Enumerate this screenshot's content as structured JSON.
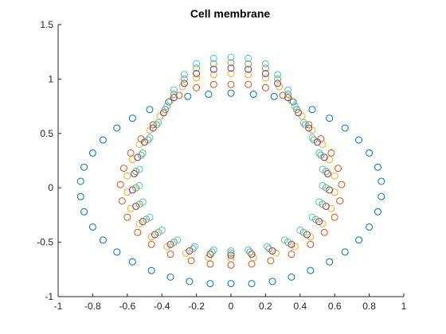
{
  "chart_data": {
    "type": "scatter",
    "title": "Cell membrane",
    "xlabel": "",
    "ylabel": "",
    "xlim": [
      -1,
      1
    ],
    "ylim": [
      -1,
      1.5
    ],
    "xticks": [
      -1,
      -0.8,
      -0.6,
      -0.4,
      -0.2,
      0,
      0.2,
      0.4,
      0.6,
      0.8,
      1
    ],
    "xtick_labels": [
      "-1",
      "-0.8",
      "-0.6",
      "-0.4",
      "-0.2",
      "0",
      "0.2",
      "0.4",
      "0.6",
      "0.8",
      "1"
    ],
    "yticks": [
      -1,
      -0.5,
      0,
      0.5,
      1,
      1.5
    ],
    "ytick_labels": [
      "-1",
      "-0.5",
      "0",
      "0.5",
      "1",
      "1.5"
    ],
    "grid": false,
    "marker": "open-circle",
    "series": [
      {
        "color": "#0072BD",
        "points": [
          [
            0,
            0.87
          ],
          [
            0.13,
            0.86
          ],
          [
            0.25,
            0.84
          ],
          [
            0.36,
            0.79
          ],
          [
            0.47,
            0.72
          ],
          [
            0.57,
            0.64
          ],
          [
            0.66,
            0.55
          ],
          [
            0.74,
            0.44
          ],
          [
            0.8,
            0.32
          ],
          [
            0.85,
            0.19
          ],
          [
            0.87,
            0.06
          ],
          [
            0.87,
            -0.08
          ],
          [
            0.85,
            -0.22
          ],
          [
            0.8,
            -0.36
          ],
          [
            0.74,
            -0.48
          ],
          [
            0.66,
            -0.59
          ],
          [
            0.57,
            -0.68
          ],
          [
            0.46,
            -0.76
          ],
          [
            0.35,
            -0.82
          ],
          [
            0.24,
            -0.86
          ],
          [
            0.12,
            -0.88
          ],
          [
            0,
            -0.88
          ],
          [
            -0.12,
            -0.88
          ],
          [
            -0.24,
            -0.86
          ],
          [
            -0.35,
            -0.82
          ],
          [
            -0.46,
            -0.76
          ],
          [
            -0.57,
            -0.68
          ],
          [
            -0.66,
            -0.59
          ],
          [
            -0.74,
            -0.48
          ],
          [
            -0.8,
            -0.36
          ],
          [
            -0.85,
            -0.22
          ],
          [
            -0.87,
            -0.08
          ],
          [
            -0.87,
            0.06
          ],
          [
            -0.85,
            0.19
          ],
          [
            -0.8,
            0.32
          ],
          [
            -0.74,
            0.44
          ],
          [
            -0.66,
            0.55
          ],
          [
            -0.57,
            0.64
          ],
          [
            -0.47,
            0.72
          ],
          [
            -0.36,
            0.79
          ],
          [
            -0.25,
            0.84
          ],
          [
            -0.13,
            0.86
          ]
        ]
      },
      {
        "color": "#D95319",
        "points": [
          [
            0,
            0.95
          ],
          [
            0.1,
            0.95
          ],
          [
            0.2,
            0.92
          ],
          [
            0.3,
            0.85
          ],
          [
            0.38,
            0.72
          ],
          [
            0.45,
            0.58
          ],
          [
            0.52,
            0.45
          ],
          [
            0.58,
            0.32
          ],
          [
            0.62,
            0.18
          ],
          [
            0.64,
            0.03
          ],
          [
            0.63,
            -0.12
          ],
          [
            0.6,
            -0.27
          ],
          [
            0.54,
            -0.41
          ],
          [
            0.46,
            -0.52
          ],
          [
            0.35,
            -0.61
          ],
          [
            0.23,
            -0.67
          ],
          [
            0.12,
            -0.7
          ],
          [
            0,
            -0.71
          ],
          [
            -0.12,
            -0.7
          ],
          [
            -0.23,
            -0.67
          ],
          [
            -0.35,
            -0.61
          ],
          [
            -0.46,
            -0.52
          ],
          [
            -0.54,
            -0.41
          ],
          [
            -0.6,
            -0.27
          ],
          [
            -0.63,
            -0.12
          ],
          [
            -0.64,
            0.03
          ],
          [
            -0.62,
            0.18
          ],
          [
            -0.58,
            0.32
          ],
          [
            -0.52,
            0.45
          ],
          [
            -0.45,
            0.58
          ],
          [
            -0.38,
            0.72
          ],
          [
            -0.3,
            0.85
          ],
          [
            -0.2,
            0.92
          ],
          [
            -0.1,
            0.95
          ]
        ]
      },
      {
        "color": "#EDB120",
        "points": [
          [
            0,
            1.05
          ],
          [
            0.1,
            1.04
          ],
          [
            0.2,
            1.01
          ],
          [
            0.28,
            0.93
          ],
          [
            0.35,
            0.8
          ],
          [
            0.41,
            0.66
          ],
          [
            0.47,
            0.53
          ],
          [
            0.53,
            0.4
          ],
          [
            0.57,
            0.26
          ],
          [
            0.6,
            0.11
          ],
          [
            0.6,
            -0.04
          ],
          [
            0.58,
            -0.19
          ],
          [
            0.53,
            -0.33
          ],
          [
            0.46,
            -0.45
          ],
          [
            0.37,
            -0.54
          ],
          [
            0.26,
            -0.6
          ],
          [
            0.13,
            -0.64
          ],
          [
            0,
            -0.65
          ],
          [
            -0.13,
            -0.64
          ],
          [
            -0.26,
            -0.6
          ],
          [
            -0.37,
            -0.54
          ],
          [
            -0.46,
            -0.45
          ],
          [
            -0.53,
            -0.33
          ],
          [
            -0.58,
            -0.19
          ],
          [
            -0.6,
            -0.04
          ],
          [
            -0.6,
            0.11
          ],
          [
            -0.57,
            0.26
          ],
          [
            -0.53,
            0.4
          ],
          [
            -0.47,
            0.53
          ],
          [
            -0.41,
            0.66
          ],
          [
            -0.35,
            0.8
          ],
          [
            -0.28,
            0.93
          ],
          [
            -0.2,
            1.01
          ],
          [
            -0.1,
            1.04
          ]
        ]
      },
      {
        "color": "#7E2F8E",
        "points": [
          [
            0,
            1.1
          ],
          [
            0.1,
            1.09
          ],
          [
            0.2,
            1.05
          ],
          [
            0.27,
            0.96
          ],
          [
            0.33,
            0.83
          ],
          [
            0.39,
            0.69
          ],
          [
            0.45,
            0.55
          ],
          [
            0.5,
            0.42
          ],
          [
            0.54,
            0.28
          ],
          [
            0.56,
            0.13
          ],
          [
            0.57,
            -0.02
          ],
          [
            0.55,
            -0.17
          ],
          [
            0.51,
            -0.31
          ],
          [
            0.44,
            -0.43
          ],
          [
            0.35,
            -0.52
          ],
          [
            0.24,
            -0.58
          ],
          [
            0.12,
            -0.61
          ],
          [
            0,
            -0.62
          ],
          [
            -0.12,
            -0.61
          ],
          [
            -0.24,
            -0.58
          ],
          [
            -0.35,
            -0.52
          ],
          [
            -0.44,
            -0.43
          ],
          [
            -0.51,
            -0.31
          ],
          [
            -0.55,
            -0.17
          ],
          [
            -0.57,
            -0.02
          ],
          [
            -0.56,
            0.13
          ],
          [
            -0.54,
            0.28
          ],
          [
            -0.5,
            0.42
          ],
          [
            -0.45,
            0.55
          ],
          [
            -0.39,
            0.69
          ],
          [
            -0.33,
            0.83
          ],
          [
            -0.27,
            0.96
          ],
          [
            -0.2,
            1.05
          ],
          [
            -0.1,
            1.09
          ]
        ]
      },
      {
        "color": "#77AC30",
        "points": [
          [
            0,
            1.15
          ],
          [
            0.1,
            1.14
          ],
          [
            0.2,
            1.1
          ],
          [
            0.27,
            1.0
          ],
          [
            0.33,
            0.86
          ],
          [
            0.38,
            0.72
          ],
          [
            0.43,
            0.58
          ],
          [
            0.48,
            0.44
          ],
          [
            0.52,
            0.3
          ],
          [
            0.55,
            0.15
          ],
          [
            0.55,
            0.0
          ],
          [
            0.53,
            -0.15
          ],
          [
            0.49,
            -0.29
          ],
          [
            0.42,
            -0.41
          ],
          [
            0.33,
            -0.5
          ],
          [
            0.22,
            -0.56
          ],
          [
            0.11,
            -0.59
          ],
          [
            0,
            -0.6
          ],
          [
            -0.11,
            -0.59
          ],
          [
            -0.22,
            -0.56
          ],
          [
            -0.33,
            -0.5
          ],
          [
            -0.42,
            -0.41
          ],
          [
            -0.49,
            -0.29
          ],
          [
            -0.53,
            -0.15
          ],
          [
            -0.55,
            0.0
          ],
          [
            -0.55,
            0.15
          ],
          [
            -0.52,
            0.3
          ],
          [
            -0.48,
            0.44
          ],
          [
            -0.43,
            0.58
          ],
          [
            -0.38,
            0.72
          ],
          [
            -0.33,
            0.86
          ],
          [
            -0.27,
            1.0
          ],
          [
            -0.2,
            1.1
          ],
          [
            -0.1,
            1.14
          ]
        ]
      },
      {
        "color": "#4DBEEE",
        "points": [
          [
            0,
            1.2
          ],
          [
            0.1,
            1.19
          ],
          [
            0.2,
            1.14
          ],
          [
            0.27,
            1.04
          ],
          [
            0.33,
            0.9
          ],
          [
            0.37,
            0.75
          ],
          [
            0.42,
            0.6
          ],
          [
            0.47,
            0.46
          ],
          [
            0.51,
            0.32
          ],
          [
            0.53,
            0.17
          ],
          [
            0.53,
            0.02
          ],
          [
            0.51,
            -0.13
          ],
          [
            0.47,
            -0.27
          ],
          [
            0.4,
            -0.39
          ],
          [
            0.31,
            -0.48
          ],
          [
            0.21,
            -0.54
          ],
          [
            0.1,
            -0.57
          ],
          [
            0,
            -0.58
          ],
          [
            -0.1,
            -0.57
          ],
          [
            -0.21,
            -0.54
          ],
          [
            -0.31,
            -0.48
          ],
          [
            -0.4,
            -0.39
          ],
          [
            -0.47,
            -0.27
          ],
          [
            -0.51,
            -0.13
          ],
          [
            -0.53,
            0.02
          ],
          [
            -0.53,
            0.17
          ],
          [
            -0.51,
            0.32
          ],
          [
            -0.47,
            0.46
          ],
          [
            -0.42,
            0.6
          ],
          [
            -0.37,
            0.75
          ],
          [
            -0.33,
            0.9
          ],
          [
            -0.27,
            1.04
          ],
          [
            -0.2,
            1.14
          ],
          [
            -0.1,
            1.19
          ]
        ]
      }
    ]
  }
}
